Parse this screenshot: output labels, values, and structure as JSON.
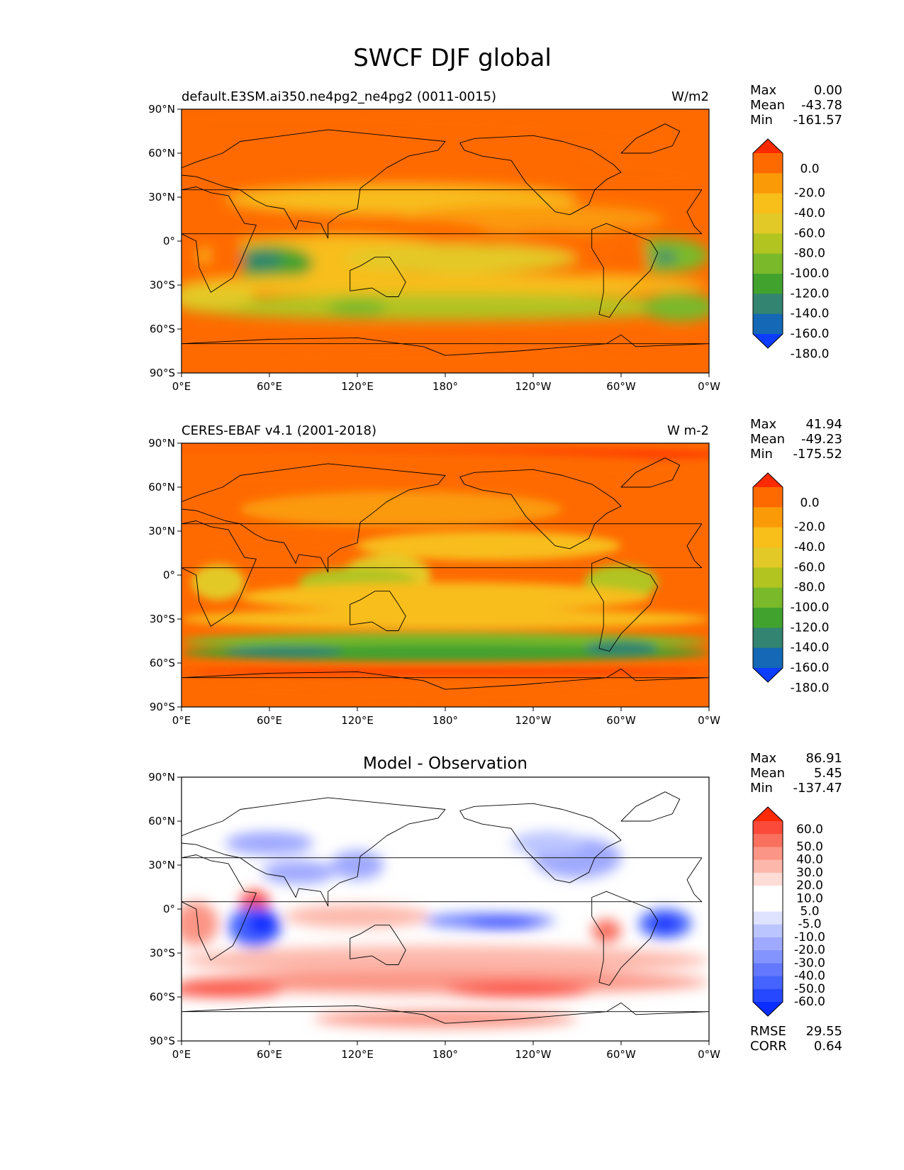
{
  "title": "SWCF DJF global",
  "x_ticks": [
    "0°E",
    "60°E",
    "120°E",
    "180°",
    "120°W",
    "60°W",
    "0°W"
  ],
  "y_ticks": [
    "90°N",
    "60°N",
    "30°N",
    "0°",
    "30°S",
    "60°S",
    "90°S"
  ],
  "panels": [
    {
      "left_title": "default.E3SM.ai350.ne4pg2_ne4pg2 (0011-0015)",
      "center_title": "",
      "right_title": "W/m2",
      "stats": {
        "max_label": "Max",
        "max": "0.00",
        "mean_label": "Mean",
        "mean": "-43.78",
        "min_label": "Min",
        "min": "-161.57"
      },
      "colorbar": {
        "colors": [
          "#ff2a00",
          "#fe6a00",
          "#fb9a07",
          "#f8be1a",
          "#e3c927",
          "#b1c420",
          "#7ab92a",
          "#42a22e",
          "#338470",
          "#1468b5",
          "#0b3cff"
        ],
        "labels": [
          "0.0",
          "-20.0",
          "-40.0",
          "-60.0",
          "-80.0",
          "-100.0",
          "-120.0",
          "-140.0",
          "-160.0",
          "-180.0"
        ]
      }
    },
    {
      "left_title": "CERES-EBAF v4.1 (2001-2018)",
      "center_title": "",
      "right_title": "W m-2",
      "stats": {
        "max_label": "Max",
        "max": "41.94",
        "mean_label": "Mean",
        "mean": "-49.23",
        "min_label": "Min",
        "min": "-175.52"
      },
      "colorbar": {
        "colors": [
          "#ff2a00",
          "#fe6a00",
          "#fb9a07",
          "#f8be1a",
          "#e3c927",
          "#b1c420",
          "#7ab92a",
          "#42a22e",
          "#338470",
          "#1468b5",
          "#0b3cff"
        ],
        "labels": [
          "0.0",
          "-20.0",
          "-40.0",
          "-60.0",
          "-80.0",
          "-100.0",
          "-120.0",
          "-140.0",
          "-160.0",
          "-180.0"
        ]
      }
    },
    {
      "left_title": "",
      "center_title": "Model - Observation",
      "right_title": "",
      "stats": {
        "max_label": "Max",
        "max": "86.91",
        "mean_label": "Mean",
        "mean": "5.45",
        "min_label": "Min",
        "min": "-137.47"
      },
      "colorbar": {
        "colors": [
          "#ff2a00",
          "#fb4a3a",
          "#f9705e",
          "#fb9585",
          "#fdb8ab",
          "#ffdcd6",
          "#ffffff",
          "#ffffff",
          "#dfe3ff",
          "#bbc5ff",
          "#9fa9ff",
          "#8494ff",
          "#6478ff",
          "#4564ff",
          "#2648ff",
          "#0b2cff"
        ],
        "labels": [
          "60.0",
          "50.0",
          "40.0",
          "30.0",
          "20.0",
          "10.0",
          "5.0",
          "-5.0",
          "-10.0",
          "-20.0",
          "-30.0",
          "-40.0",
          "-50.0",
          "-60.0"
        ]
      }
    }
  ],
  "bottom_stats": {
    "rmse_label": "RMSE",
    "rmse": "29.55",
    "corr_label": "CORR",
    "corr": "0.64"
  },
  "chart_data": [
    {
      "type": "heatmap",
      "title": "default.E3SM.ai350.ne4pg2_ne4pg2 (0011-0015)",
      "units": "W/m2",
      "xlim": [
        0,
        360
      ],
      "ylim": [
        -90,
        90
      ],
      "max": 0.0,
      "mean": -43.78,
      "min": -161.57,
      "levels": [
        0,
        -20,
        -40,
        -60,
        -80,
        -100,
        -120,
        -140,
        -160,
        -180
      ]
    },
    {
      "type": "heatmap",
      "title": "CERES-EBAF v4.1 (2001-2018)",
      "units": "W m-2",
      "xlim": [
        0,
        360
      ],
      "ylim": [
        -90,
        90
      ],
      "max": 41.94,
      "mean": -49.23,
      "min": -175.52,
      "levels": [
        0,
        -20,
        -40,
        -60,
        -80,
        -100,
        -120,
        -140,
        -160,
        -180
      ]
    },
    {
      "type": "heatmap",
      "title": "Model - Observation",
      "xlim": [
        0,
        360
      ],
      "ylim": [
        -90,
        90
      ],
      "max": 86.91,
      "mean": 5.45,
      "min": -137.47,
      "rmse": 29.55,
      "corr": 0.64,
      "levels": [
        60,
        50,
        40,
        30,
        20,
        10,
        5,
        -5,
        -10,
        -20,
        -30,
        -40,
        -50,
        -60
      ]
    }
  ]
}
